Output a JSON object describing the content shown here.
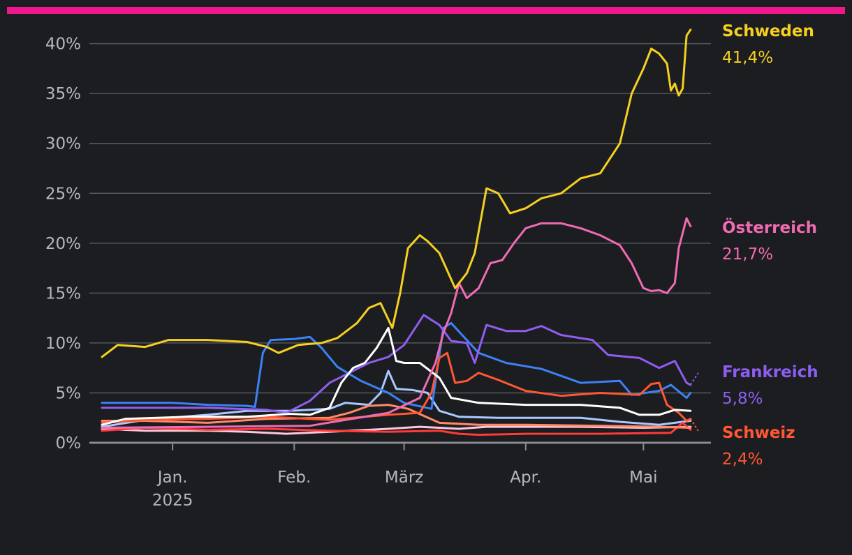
{
  "colors": {
    "background": "#1c1d20",
    "accent_bar": "#f0178c",
    "grid": "#55575c",
    "baseline": "#8a8c91",
    "tick_text": "#b5b7bc"
  },
  "chart_data": {
    "type": "line",
    "title": "",
    "xlabel": "",
    "ylabel": "",
    "ylim": [
      0,
      42
    ],
    "xlim": [
      "2024-12-14",
      "2025-05-15"
    ],
    "grid": "horizontal",
    "y_ticks": [
      {
        "value": 0,
        "label": "0%"
      },
      {
        "value": 5,
        "label": "5%"
      },
      {
        "value": 10,
        "label": "10%"
      },
      {
        "value": 15,
        "label": "15%"
      },
      {
        "value": 20,
        "label": "20%"
      },
      {
        "value": 25,
        "label": "25%"
      },
      {
        "value": 30,
        "label": "30%"
      },
      {
        "value": 35,
        "label": "35%"
      },
      {
        "value": 40,
        "label": "40%"
      }
    ],
    "x_ticks": [
      {
        "date": "2025-01-01",
        "label": "Jan.",
        "sublabel": "2025"
      },
      {
        "date": "2025-02-01",
        "label": "Feb.",
        "sublabel": ""
      },
      {
        "date": "2025-03-01",
        "label": "März",
        "sublabel": ""
      },
      {
        "date": "2025-04-01",
        "label": "Apr.",
        "sublabel": ""
      },
      {
        "date": "2025-05-01",
        "label": "Mai",
        "sublabel": ""
      }
    ],
    "series": [
      {
        "name": "",
        "color": "#ffc6dc",
        "values": [
          [
            "2024-12-14",
            1.4
          ],
          [
            "2024-12-25",
            1.2
          ],
          [
            "2025-01-10",
            1.2
          ],
          [
            "2025-01-20",
            1.1
          ],
          [
            "2025-01-30",
            0.9
          ],
          [
            "2025-02-10",
            1.1
          ],
          [
            "2025-02-25",
            1.4
          ],
          [
            "2025-03-05",
            1.6
          ],
          [
            "2025-03-15",
            1.4
          ],
          [
            "2025-03-22",
            1.6
          ],
          [
            "2025-04-01",
            1.6
          ],
          [
            "2025-04-15",
            1.6
          ],
          [
            "2025-05-01",
            1.5
          ],
          [
            "2025-05-13",
            1.6
          ]
        ]
      },
      {
        "name": "",
        "color": "#aac8ff",
        "values": [
          [
            "2024-12-14",
            1.6
          ],
          [
            "2024-12-25",
            2.3
          ],
          [
            "2025-01-10",
            2.8
          ],
          [
            "2025-01-20",
            3.2
          ],
          [
            "2025-01-31",
            3.2
          ],
          [
            "2025-02-10",
            3.4
          ],
          [
            "2025-02-14",
            4.0
          ],
          [
            "2025-02-20",
            3.8
          ],
          [
            "2025-02-23",
            5.0
          ],
          [
            "2025-02-25",
            7.2
          ],
          [
            "2025-02-27",
            5.4
          ],
          [
            "2025-03-03",
            5.3
          ],
          [
            "2025-03-07",
            5.0
          ],
          [
            "2025-03-10",
            3.2
          ],
          [
            "2025-03-15",
            2.6
          ],
          [
            "2025-03-25",
            2.5
          ],
          [
            "2025-04-05",
            2.5
          ],
          [
            "2025-04-15",
            2.5
          ],
          [
            "2025-04-25",
            2.1
          ],
          [
            "2025-05-05",
            1.8
          ],
          [
            "2025-05-13",
            2.2
          ]
        ]
      },
      {
        "name": "",
        "color": "#ff3a3a",
        "values": [
          [
            "2024-12-14",
            1.2
          ],
          [
            "2024-12-25",
            1.5
          ],
          [
            "2025-01-10",
            1.3
          ],
          [
            "2025-01-25",
            1.4
          ],
          [
            "2025-02-10",
            1.2
          ],
          [
            "2025-02-25",
            1.1
          ],
          [
            "2025-03-10",
            1.2
          ],
          [
            "2025-03-15",
            0.9
          ],
          [
            "2025-03-20",
            0.8
          ],
          [
            "2025-04-01",
            0.9
          ],
          [
            "2025-04-20",
            0.9
          ],
          [
            "2025-05-08",
            1.0
          ],
          [
            "2025-05-11",
            2.0
          ],
          [
            "2025-05-13",
            1.3
          ]
        ]
      },
      {
        "name": "",
        "color": "#ff8a6a",
        "values": [
          [
            "2024-12-14",
            2.2
          ],
          [
            "2024-12-25",
            2.2
          ],
          [
            "2025-01-10",
            2.0
          ],
          [
            "2025-01-25",
            2.4
          ],
          [
            "2025-02-10",
            2.5
          ],
          [
            "2025-02-15",
            3.0
          ],
          [
            "2025-02-20",
            3.7
          ],
          [
            "2025-02-25",
            3.8
          ],
          [
            "2025-03-02",
            3.4
          ],
          [
            "2025-03-10",
            2.0
          ],
          [
            "2025-03-20",
            1.8
          ],
          [
            "2025-04-01",
            1.8
          ],
          [
            "2025-04-20",
            1.7
          ],
          [
            "2025-05-05",
            1.6
          ],
          [
            "2025-05-13",
            1.5
          ]
        ]
      },
      {
        "name": "",
        "color": "#3b82f6",
        "values": [
          [
            "2024-12-14",
            4.0
          ],
          [
            "2024-12-20",
            4.0
          ],
          [
            "2025-01-01",
            4.0
          ],
          [
            "2025-01-10",
            3.8
          ],
          [
            "2025-01-20",
            3.7
          ],
          [
            "2025-01-22",
            3.6
          ],
          [
            "2025-01-24",
            9.0
          ],
          [
            "2025-01-26",
            10.3
          ],
          [
            "2025-02-01",
            10.4
          ],
          [
            "2025-02-05",
            10.6
          ],
          [
            "2025-02-08",
            9.5
          ],
          [
            "2025-02-12",
            7.6
          ],
          [
            "2025-02-18",
            6.2
          ],
          [
            "2025-02-25",
            5.0
          ],
          [
            "2025-03-01",
            4.0
          ],
          [
            "2025-03-08",
            3.4
          ],
          [
            "2025-03-11",
            11.5
          ],
          [
            "2025-03-13",
            12.0
          ],
          [
            "2025-03-20",
            9.0
          ],
          [
            "2025-03-27",
            8.0
          ],
          [
            "2025-04-05",
            7.4
          ],
          [
            "2025-04-15",
            6.0
          ],
          [
            "2025-04-25",
            6.2
          ],
          [
            "2025-04-28",
            4.8
          ],
          [
            "2025-05-05",
            5.2
          ],
          [
            "2025-05-08",
            5.8
          ],
          [
            "2025-05-12",
            4.5
          ],
          [
            "2025-05-13",
            5.0
          ]
        ]
      },
      {
        "name": "Schweiz",
        "color": "#ff5733",
        "value_label": "2,4%",
        "values": [
          [
            "2024-12-14",
            2.0
          ],
          [
            "2024-12-25",
            2.3
          ],
          [
            "2025-01-10",
            2.4
          ],
          [
            "2025-01-25",
            2.6
          ],
          [
            "2025-02-10",
            2.3
          ],
          [
            "2025-02-25",
            2.8
          ],
          [
            "2025-03-05",
            3.0
          ],
          [
            "2025-03-08",
            5.0
          ],
          [
            "2025-03-10",
            8.5
          ],
          [
            "2025-03-12",
            9.0
          ],
          [
            "2025-03-14",
            6.0
          ],
          [
            "2025-03-17",
            6.2
          ],
          [
            "2025-03-20",
            7.0
          ],
          [
            "2025-03-25",
            6.3
          ],
          [
            "2025-04-01",
            5.2
          ],
          [
            "2025-04-10",
            4.7
          ],
          [
            "2025-04-20",
            5.0
          ],
          [
            "2025-04-30",
            4.8
          ],
          [
            "2025-05-03",
            5.9
          ],
          [
            "2025-05-05",
            6.0
          ],
          [
            "2025-05-07",
            3.8
          ],
          [
            "2025-05-10",
            3.0
          ],
          [
            "2025-05-12",
            2.2
          ],
          [
            "2025-05-13",
            2.4
          ]
        ]
      },
      {
        "name": "Frankreich",
        "color": "#8e5ef0",
        "value_label": "5,8%",
        "values": [
          [
            "2024-12-14",
            3.5
          ],
          [
            "2024-12-25",
            3.5
          ],
          [
            "2025-01-10",
            3.5
          ],
          [
            "2025-01-25",
            3.3
          ],
          [
            "2025-01-30",
            3.0
          ],
          [
            "2025-02-05",
            4.2
          ],
          [
            "2025-02-10",
            6.0
          ],
          [
            "2025-02-15",
            7.0
          ],
          [
            "2025-02-20",
            8.0
          ],
          [
            "2025-02-25",
            8.6
          ],
          [
            "2025-03-01",
            9.8
          ],
          [
            "2025-03-03",
            11.0
          ],
          [
            "2025-03-06",
            12.8
          ],
          [
            "2025-03-10",
            11.8
          ],
          [
            "2025-03-13",
            10.2
          ],
          [
            "2025-03-17",
            10.0
          ],
          [
            "2025-03-19",
            8.0
          ],
          [
            "2025-03-22",
            11.8
          ],
          [
            "2025-03-27",
            11.2
          ],
          [
            "2025-04-01",
            11.2
          ],
          [
            "2025-04-05",
            11.7
          ],
          [
            "2025-04-10",
            10.8
          ],
          [
            "2025-04-18",
            10.3
          ],
          [
            "2025-04-22",
            8.8
          ],
          [
            "2025-04-30",
            8.5
          ],
          [
            "2025-05-05",
            7.5
          ],
          [
            "2025-05-09",
            8.2
          ],
          [
            "2025-05-12",
            6.0
          ],
          [
            "2025-05-13",
            5.8
          ]
        ]
      },
      {
        "name": "",
        "color": "#ffffff",
        "values": [
          [
            "2024-12-14",
            1.8
          ],
          [
            "2024-12-20",
            2.4
          ],
          [
            "2025-01-05",
            2.6
          ],
          [
            "2025-01-20",
            2.6
          ],
          [
            "2025-01-31",
            2.9
          ],
          [
            "2025-02-05",
            2.8
          ],
          [
            "2025-02-10",
            3.5
          ],
          [
            "2025-02-13",
            6.0
          ],
          [
            "2025-02-16",
            7.5
          ],
          [
            "2025-02-19",
            8.0
          ],
          [
            "2025-02-22",
            9.5
          ],
          [
            "2025-02-25",
            11.5
          ],
          [
            "2025-02-27",
            8.2
          ],
          [
            "2025-03-01",
            8.0
          ],
          [
            "2025-03-05",
            8.0
          ],
          [
            "2025-03-10",
            6.5
          ],
          [
            "2025-03-13",
            4.5
          ],
          [
            "2025-03-20",
            4.0
          ],
          [
            "2025-04-01",
            3.8
          ],
          [
            "2025-04-15",
            3.8
          ],
          [
            "2025-04-25",
            3.5
          ],
          [
            "2025-04-30",
            2.8
          ],
          [
            "2025-05-05",
            2.8
          ],
          [
            "2025-05-09",
            3.3
          ],
          [
            "2025-05-13",
            3.2
          ]
        ]
      },
      {
        "name": "Österreich",
        "color": "#f06bb4",
        "value_label": "21,7%",
        "values": [
          [
            "2024-12-14",
            1.5
          ],
          [
            "2025-01-10",
            1.6
          ],
          [
            "2025-02-05",
            1.7
          ],
          [
            "2025-02-25",
            3.0
          ],
          [
            "2025-03-05",
            4.5
          ],
          [
            "2025-03-09",
            8.0
          ],
          [
            "2025-03-11",
            11.0
          ],
          [
            "2025-03-13",
            13.0
          ],
          [
            "2025-03-15",
            16.0
          ],
          [
            "2025-03-17",
            14.5
          ],
          [
            "2025-03-20",
            15.5
          ],
          [
            "2025-03-23",
            18.0
          ],
          [
            "2025-03-26",
            18.3
          ],
          [
            "2025-03-29",
            20.0
          ],
          [
            "2025-04-01",
            21.5
          ],
          [
            "2025-04-05",
            22.0
          ],
          [
            "2025-04-10",
            22.0
          ],
          [
            "2025-04-15",
            21.5
          ],
          [
            "2025-04-20",
            20.8
          ],
          [
            "2025-04-25",
            19.8
          ],
          [
            "2025-04-28",
            18.0
          ],
          [
            "2025-05-01",
            15.5
          ],
          [
            "2025-05-03",
            15.2
          ],
          [
            "2025-05-05",
            15.3
          ],
          [
            "2025-05-07",
            15.0
          ],
          [
            "2025-05-09",
            16.0
          ],
          [
            "2025-05-10",
            19.5
          ],
          [
            "2025-05-12",
            22.5
          ],
          [
            "2025-05-13",
            21.7
          ]
        ]
      },
      {
        "name": "Schweden",
        "color": "#f5d020",
        "value_label": "41,4%",
        "values": [
          [
            "2024-12-14",
            8.6
          ],
          [
            "2024-12-18",
            9.8
          ],
          [
            "2024-12-25",
            9.6
          ],
          [
            "2024-12-31",
            10.3
          ],
          [
            "2025-01-10",
            10.3
          ],
          [
            "2025-01-20",
            10.1
          ],
          [
            "2025-01-25",
            9.6
          ],
          [
            "2025-01-28",
            9.0
          ],
          [
            "2025-02-02",
            9.8
          ],
          [
            "2025-02-08",
            10.0
          ],
          [
            "2025-02-12",
            10.5
          ],
          [
            "2025-02-17",
            12.0
          ],
          [
            "2025-02-20",
            13.5
          ],
          [
            "2025-02-23",
            14.0
          ],
          [
            "2025-02-26",
            11.5
          ],
          [
            "2025-02-28",
            15.0
          ],
          [
            "2025-03-02",
            19.5
          ],
          [
            "2025-03-05",
            20.8
          ],
          [
            "2025-03-07",
            20.2
          ],
          [
            "2025-03-10",
            19.0
          ],
          [
            "2025-03-14",
            15.5
          ],
          [
            "2025-03-17",
            17.0
          ],
          [
            "2025-03-19",
            19.0
          ],
          [
            "2025-03-22",
            25.5
          ],
          [
            "2025-03-25",
            25.0
          ],
          [
            "2025-03-28",
            23.0
          ],
          [
            "2025-04-01",
            23.5
          ],
          [
            "2025-04-05",
            24.5
          ],
          [
            "2025-04-10",
            25.0
          ],
          [
            "2025-04-15",
            26.5
          ],
          [
            "2025-04-20",
            27.0
          ],
          [
            "2025-04-25",
            30.0
          ],
          [
            "2025-04-28",
            35.0
          ],
          [
            "2025-05-01",
            37.5
          ],
          [
            "2025-05-03",
            39.5
          ],
          [
            "2025-05-05",
            39.0
          ],
          [
            "2025-05-07",
            38.0
          ],
          [
            "2025-05-08",
            35.3
          ],
          [
            "2025-05-09",
            36.0
          ],
          [
            "2025-05-10",
            34.8
          ],
          [
            "2025-05-11",
            35.5
          ],
          [
            "2025-05-12",
            40.8
          ],
          [
            "2025-05-13",
            41.4
          ]
        ]
      }
    ]
  }
}
